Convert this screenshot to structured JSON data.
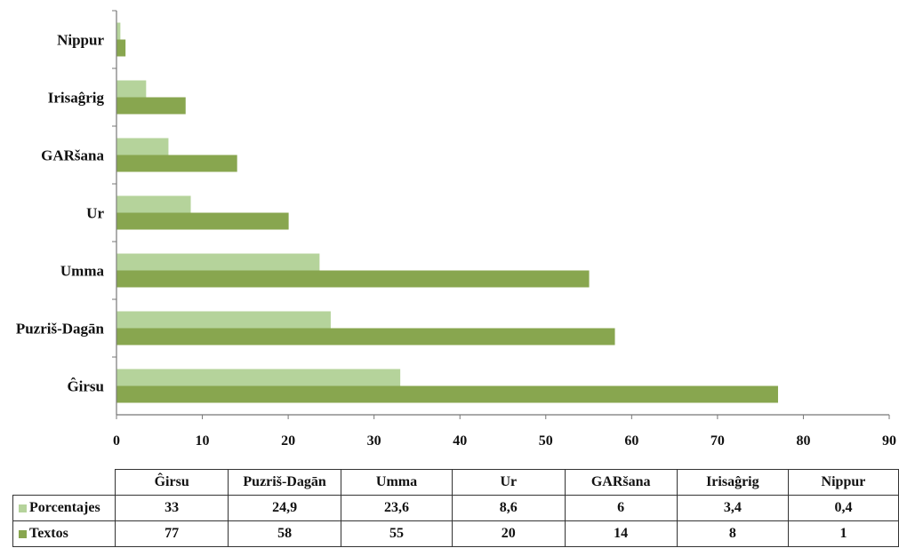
{
  "chart_data": {
    "type": "bar",
    "orientation": "horizontal",
    "categories": [
      "Ĝirsu",
      "Puzriš-Dagān",
      "Umma",
      "Ur",
      "GARšana",
      "Irisaĝrig",
      "Nippur"
    ],
    "series": [
      {
        "name": "Porcentajes",
        "color": "#b5d39b",
        "values": [
          33,
          24.9,
          23.6,
          8.6,
          6,
          3.4,
          0.4
        ],
        "display": [
          "33",
          "24,9",
          "23,6",
          "8,6",
          "6",
          "3,4",
          "0,4"
        ]
      },
      {
        "name": "Textos",
        "color": "#88a64f",
        "values": [
          77,
          58,
          55,
          20,
          14,
          8,
          1
        ],
        "display": [
          "77",
          "58",
          "55",
          "20",
          "14",
          "8",
          "1"
        ]
      }
    ],
    "xlim": [
      0,
      90
    ],
    "xticks": [
      "0",
      "10",
      "20",
      "30",
      "40",
      "50",
      "60",
      "70",
      "80",
      "90"
    ],
    "grid": false,
    "legend": "data-table-below"
  }
}
